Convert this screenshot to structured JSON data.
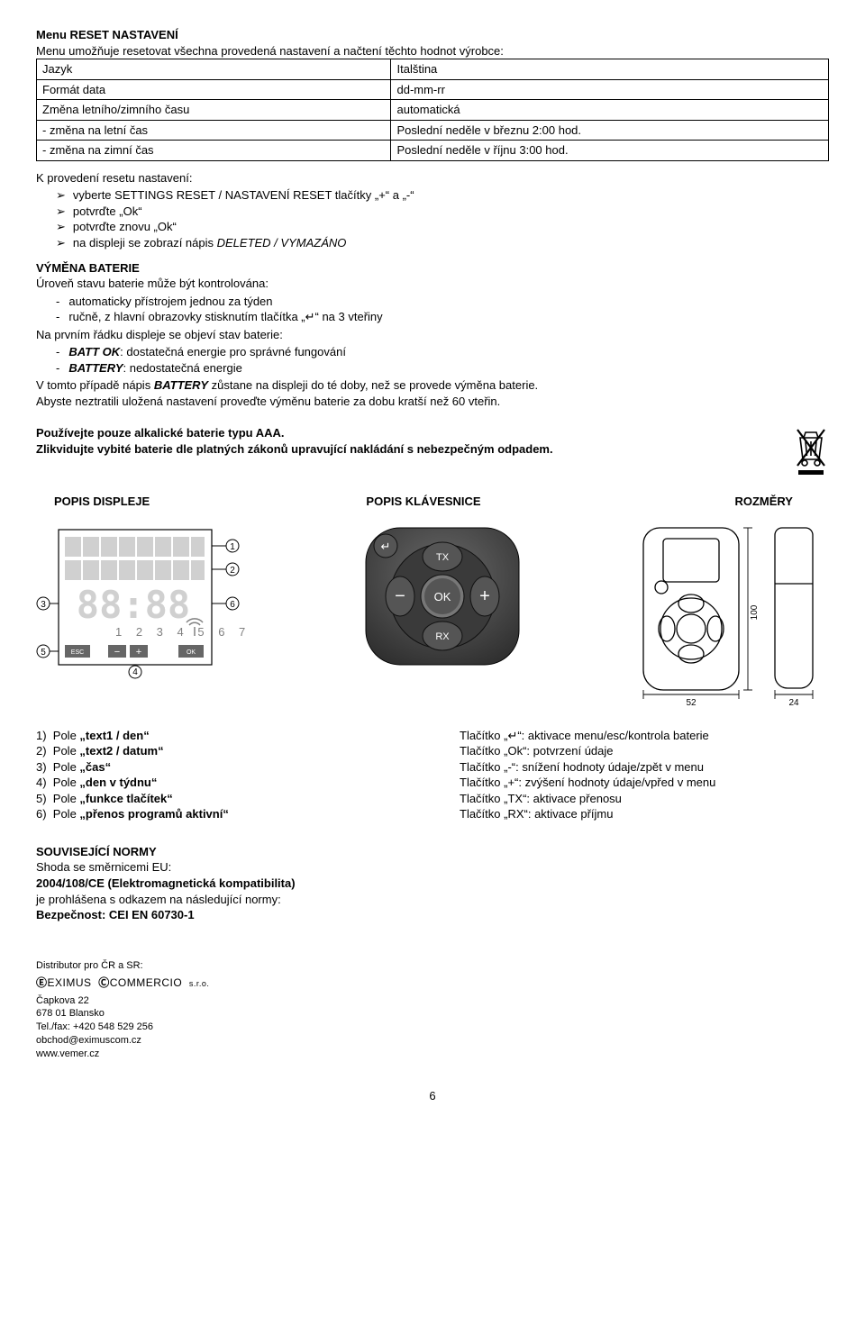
{
  "title": "Menu RESET NASTAVENÍ",
  "intro": "Menu umožňuje resetovat všechna provedená nastavení a načtení těchto hodnot výrobce:",
  "settingsTable": {
    "rows": [
      {
        "l": "Jazyk",
        "r": "Italština"
      },
      {
        "l": "Formát data",
        "r": "dd-mm-rr"
      },
      {
        "l": "Změna letního/zimního času",
        "r": "automatická"
      },
      {
        "l": "- změna na letní čas",
        "r": "Poslední neděle v březnu 2:00 hod."
      },
      {
        "l": "- změna na zimní čas",
        "r": "Poslední neděle v říjnu 3:00 hod."
      }
    ]
  },
  "resetHeading": "K provedení resetu nastavení:",
  "resetSteps": [
    "vyberte SETTINGS RESET / NASTAVENÍ RESET tlačítky „+“ a „-“",
    "potvrďte „Ok“",
    "potvrďte znovu „Ok“",
    "na displeji se zobrazí nápis DELETED / VYMAZÁNO"
  ],
  "battery": {
    "heading": "VÝMĚNA BATERIE",
    "line1": "Úroveň stavu baterie může být kontrolována:",
    "items": [
      "automaticky přístrojem jednou za týden",
      "ručně, z hlavní obrazovky stisknutím tlačítka „↵“ na 3 vteřiny"
    ],
    "line2": "Na prvním řádku displeje se objeví stav baterie:",
    "states": [
      {
        "name": "BATT OK",
        "desc": ": dostatečná energie pro správné fungování"
      },
      {
        "name": "BATTERY",
        "desc": ": nedostatečná energie"
      }
    ],
    "line3a": "V tomto případě nápis ",
    "line3bold": "BATTERY",
    "line3b": " zůstane na displeji do té doby, než se provede výměna baterie.",
    "line4": "Abyste neztratili uložená nastavení proveďte výměnu baterie za dobu kratší než 60 vteřin."
  },
  "warn": {
    "l1": "Používejte pouze alkalické baterie typu AAA.",
    "l2": "Zlikvidujte vybité baterie dle platných zákonů upravující nakládání s nebezpečným odpadem."
  },
  "sections": {
    "display": "POPIS DISPLEJE",
    "keyboard": "POPIS KLÁVESNICE",
    "dims": "ROZMĚRY"
  },
  "dims": {
    "w": "52",
    "h": "100",
    "d": "24"
  },
  "displayFields": [
    "Pole „text1 / den“",
    "Pole „text2 / datum“",
    "Pole „čas“",
    "Pole „den v týdnu“",
    "Pole „funkce tlačítek“",
    "Pole „přenos programů aktivní“"
  ],
  "buttons": [
    "Tlačítko „↵“: aktivace menu/esc/kontrola baterie",
    "Tlačítko „Ok“: potvrzení údaje",
    "Tlačítko „-“: snížení hodnoty údaje/zpět v menu",
    "Tlačítko „+“: zvýšení hodnoty údaje/vpřed v menu",
    "Tlačítko „TX“: aktivace přenosu",
    "Tlačítko „RX“: aktivace příjmu"
  ],
  "norms": {
    "heading": "SOUVISEJÍCÍ NORMY",
    "l1": "Shoda se směrnicemi EU:",
    "l2": "2004/108/CE (Elektromagnetická kompatibilita)",
    "l3": "je prohlášena s odkazem na následující normy:",
    "l4": "Bezpečnost: CEI EN 60730-1"
  },
  "distributor": {
    "heading": "Distributor pro ČR a SR:",
    "brand1": "EXIMUS",
    "brand2": "COMMERCIO",
    "brandSuffix": "s.r.o.",
    "addr1": "Čapkova 22",
    "addr2": "678 01  Blansko",
    "tel": "Tel./fax: +420 548 529 256",
    "mail": "obchod@eximuscom.cz",
    "web": "www.vemer.cz"
  },
  "pageNumber": "6",
  "colors": {
    "black": "#000000",
    "deviceGrey": "#4a4a4a",
    "deviceDark": "#2d2d2d",
    "lightGrey": "#d0d0d0"
  }
}
